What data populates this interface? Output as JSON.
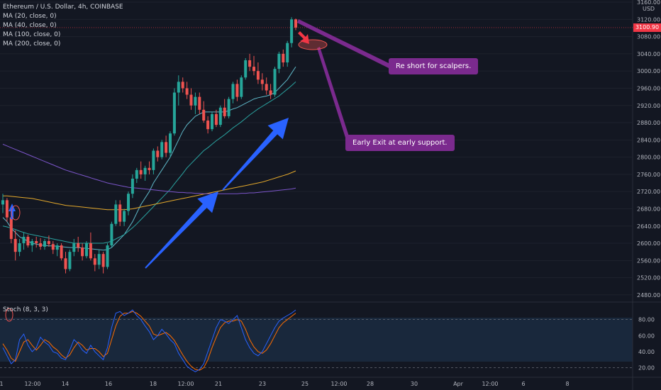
{
  "header": {
    "title": "Ethereum / U.S. Dollar, 4h, COINBASE",
    "indicators": [
      "MA (20, close, 0)",
      "MA (40, close, 0)",
      "MA (100, close, 0)",
      "MA (200, close, 0)"
    ],
    "stoch_label": "Stoch (8, 3, 3)"
  },
  "currency": "USD",
  "last_price": "3100.90",
  "annotations": {
    "callout_1": "Re short for scalpers.",
    "callout_2": "Early Exit at early support."
  },
  "colors": {
    "bull": "#26a69a",
    "bear": "#ef5350",
    "ma20": "#5eb6c6",
    "ma40": "#2aa3a0",
    "ma100": "#e3a82b",
    "ma200": "#7b55c9",
    "arrow": "#2962ff",
    "callout": "#7b2a8e",
    "stoch_k": "#2962ff",
    "stoch_d": "#ff6d00"
  },
  "chart_data": {
    "type": "candlestick",
    "title": "Ethereum / U.S. Dollar, 4h, COINBASE",
    "y_axis": {
      "ticks": [
        3160,
        3120,
        3080,
        3040,
        3000,
        2960,
        2920,
        2880,
        2840,
        2800,
        2760,
        2720,
        2680,
        2640,
        2600,
        2560,
        2520,
        2480
      ],
      "range": [
        2465,
        3165
      ]
    },
    "x_axis": {
      "labels": [
        "1",
        "12:00",
        "14",
        "16",
        "18",
        "12:00",
        "21",
        "23",
        "25",
        "12:00",
        "28",
        "30",
        "Apr",
        "12:00",
        "6",
        "8"
      ]
    },
    "candles": [
      [
        2690,
        2715,
        2670,
        2700
      ],
      [
        2700,
        2705,
        2650,
        2660
      ],
      [
        2660,
        2680,
        2600,
        2610
      ],
      [
        2610,
        2630,
        2560,
        2580
      ],
      [
        2580,
        2610,
        2570,
        2600
      ],
      [
        2600,
        2625,
        2585,
        2615
      ],
      [
        2615,
        2620,
        2590,
        2595
      ],
      [
        2595,
        2610,
        2580,
        2605
      ],
      [
        2605,
        2615,
        2590,
        2600
      ],
      [
        2600,
        2612,
        2585,
        2592
      ],
      [
        2592,
        2610,
        2585,
        2605
      ],
      [
        2605,
        2618,
        2592,
        2598
      ],
      [
        2598,
        2605,
        2575,
        2585
      ],
      [
        2585,
        2600,
        2570,
        2595
      ],
      [
        2595,
        2600,
        2560,
        2565
      ],
      [
        2565,
        2580,
        2530,
        2540
      ],
      [
        2540,
        2585,
        2535,
        2580
      ],
      [
        2580,
        2610,
        2570,
        2600
      ],
      [
        2600,
        2615,
        2580,
        2590
      ],
      [
        2590,
        2600,
        2560,
        2570
      ],
      [
        2570,
        2605,
        2565,
        2600
      ],
      [
        2600,
        2625,
        2560,
        2565
      ],
      [
        2565,
        2575,
        2535,
        2550
      ],
      [
        2550,
        2585,
        2540,
        2575
      ],
      [
        2575,
        2580,
        2530,
        2545
      ],
      [
        2545,
        2600,
        2540,
        2595
      ],
      [
        2595,
        2650,
        2590,
        2645
      ],
      [
        2645,
        2700,
        2640,
        2690
      ],
      [
        2690,
        2700,
        2640,
        2650
      ],
      [
        2650,
        2680,
        2640,
        2675
      ],
      [
        2675,
        2720,
        2665,
        2715
      ],
      [
        2715,
        2760,
        2705,
        2750
      ],
      [
        2750,
        2775,
        2740,
        2770
      ],
      [
        2770,
        2790,
        2750,
        2760
      ],
      [
        2760,
        2780,
        2745,
        2775
      ],
      [
        2775,
        2790,
        2760,
        2770
      ],
      [
        2770,
        2820,
        2760,
        2815
      ],
      [
        2815,
        2825,
        2790,
        2800
      ],
      [
        2800,
        2840,
        2795,
        2835
      ],
      [
        2835,
        2850,
        2800,
        2810
      ],
      [
        2810,
        2860,
        2800,
        2855
      ],
      [
        2855,
        2960,
        2850,
        2950
      ],
      [
        2950,
        2990,
        2920,
        2975
      ],
      [
        2975,
        2985,
        2950,
        2960
      ],
      [
        2960,
        2975,
        2935,
        2945
      ],
      [
        2945,
        2960,
        2910,
        2920
      ],
      [
        2920,
        2950,
        2900,
        2940
      ],
      [
        2940,
        2950,
        2900,
        2910
      ],
      [
        2910,
        2930,
        2880,
        2885
      ],
      [
        2885,
        2895,
        2855,
        2865
      ],
      [
        2865,
        2905,
        2860,
        2900
      ],
      [
        2900,
        2910,
        2870,
        2875
      ],
      [
        2875,
        2920,
        2870,
        2915
      ],
      [
        2915,
        2935,
        2890,
        2895
      ],
      [
        2895,
        2940,
        2890,
        2935
      ],
      [
        2935,
        2975,
        2925,
        2970
      ],
      [
        2970,
        2980,
        2930,
        2940
      ],
      [
        2940,
        2990,
        2935,
        2985
      ],
      [
        2985,
        3030,
        2980,
        3025
      ],
      [
        3025,
        3040,
        3000,
        3010
      ],
      [
        3010,
        3035,
        2990,
        3000
      ],
      [
        3000,
        3020,
        2970,
        2980
      ],
      [
        2980,
        2995,
        2955,
        2970
      ],
      [
        2970,
        2985,
        2945,
        2955
      ],
      [
        2955,
        2970,
        2935,
        2945
      ],
      [
        2945,
        3010,
        2940,
        3005
      ],
      [
        3005,
        3045,
        2995,
        3040
      ],
      [
        3040,
        3050,
        3010,
        3020
      ],
      [
        3020,
        3070,
        3010,
        3065
      ],
      [
        3065,
        3125,
        3055,
        3120
      ],
      [
        3120,
        3122,
        3095,
        3101
      ]
    ],
    "series": [
      {
        "name": "MA (20, close, 0)",
        "values": [
          2660,
          2650,
          2635,
          2625,
          2615,
          2610,
          2605,
          2600,
          2598,
          2596,
          2595,
          2594,
          2594,
          2593,
          2592,
          2591,
          2590,
          2590,
          2590,
          2589,
          2588,
          2587,
          2586,
          2585,
          2584,
          2585,
          2590,
          2600,
          2610,
          2620,
          2635,
          2650,
          2670,
          2690,
          2705,
          2720,
          2740,
          2755,
          2770,
          2785,
          2800,
          2820,
          2840,
          2860,
          2875,
          2885,
          2895,
          2900,
          2905,
          2905,
          2905,
          2905,
          2905,
          2905,
          2908,
          2912,
          2915,
          2920,
          2925,
          2930,
          2935,
          2938,
          2940,
          2942,
          2945,
          2950,
          2960,
          2970,
          2980,
          2995,
          3010
        ]
      },
      {
        "name": "MA (40, close, 0)",
        "values": [
          2640,
          2638,
          2635,
          2632,
          2628,
          2625,
          2622,
          2620,
          2618,
          2616,
          2614,
          2612,
          2610,
          2608,
          2606,
          2604,
          2602,
          2600,
          2600,
          2600,
          2600,
          2600,
          2600,
          2600,
          2600,
          2602,
          2605,
          2610,
          2615,
          2620,
          2628,
          2636,
          2645,
          2655,
          2665,
          2675,
          2685,
          2695,
          2705,
          2715,
          2725,
          2738,
          2750,
          2762,
          2775,
          2785,
          2795,
          2805,
          2815,
          2822,
          2830,
          2838,
          2845,
          2852,
          2860,
          2868,
          2875,
          2882,
          2890,
          2898,
          2905,
          2912,
          2918,
          2924,
          2930,
          2936,
          2942,
          2950,
          2958,
          2966,
          2975
        ]
      },
      {
        "name": "MA (100, close, 0)",
        "values": [
          2710,
          2710,
          2709,
          2708,
          2707,
          2706,
          2705,
          2704,
          2702,
          2700,
          2698,
          2696,
          2694,
          2692,
          2690,
          2688,
          2687,
          2686,
          2685,
          2684,
          2683,
          2682,
          2681,
          2680,
          2679,
          2678,
          2678,
          2678,
          2678,
          2678,
          2679,
          2680,
          2682,
          2684,
          2686,
          2688,
          2690,
          2692,
          2694,
          2696,
          2698,
          2700,
          2702,
          2704,
          2706,
          2708,
          2710,
          2712,
          2714,
          2716,
          2718,
          2720,
          2722,
          2724,
          2726,
          2728,
          2730,
          2732,
          2734,
          2736,
          2738,
          2740,
          2742,
          2745,
          2748,
          2751,
          2754,
          2757,
          2760,
          2764,
          2768
        ]
      },
      {
        "name": "MA (200, close, 0)",
        "values": [
          2830,
          2826,
          2822,
          2818,
          2814,
          2810,
          2806,
          2802,
          2798,
          2794,
          2790,
          2786,
          2782,
          2778,
          2774,
          2770,
          2767,
          2764,
          2761,
          2758,
          2755,
          2752,
          2749,
          2746,
          2743,
          2740,
          2738,
          2736,
          2734,
          2732,
          2730,
          2729,
          2728,
          2727,
          2726,
          2725,
          2724,
          2723,
          2722,
          2721,
          2720,
          2719,
          2718,
          2718,
          2717,
          2717,
          2716,
          2716,
          2715,
          2715,
          2715,
          2715,
          2715,
          2715,
          2715,
          2715,
          2715,
          2716,
          2716,
          2717,
          2717,
          2718,
          2719,
          2720,
          2721,
          2722,
          2723,
          2724,
          2725,
          2726,
          2728
        ]
      }
    ],
    "stoch": {
      "y_ticks": [
        80.0,
        60.0,
        40.0,
        20.0
      ],
      "bands": [
        80,
        20
      ],
      "range": [
        10,
        100
      ],
      "k": [
        45,
        35,
        25,
        30,
        55,
        62,
        48,
        40,
        45,
        58,
        52,
        48,
        40,
        38,
        32,
        30,
        42,
        55,
        50,
        42,
        38,
        48,
        40,
        35,
        30,
        45,
        70,
        88,
        90,
        85,
        88,
        92,
        85,
        80,
        72,
        65,
        55,
        60,
        68,
        62,
        55,
        50,
        38,
        30,
        22,
        18,
        15,
        18,
        25,
        40,
        55,
        70,
        80,
        78,
        75,
        80,
        85,
        70,
        55,
        45,
        38,
        35,
        40,
        50,
        60,
        70,
        78,
        82,
        85,
        88,
        92
      ],
      "d": [
        50,
        42,
        32,
        28,
        40,
        52,
        55,
        48,
        42,
        48,
        55,
        52,
        46,
        42,
        36,
        32,
        36,
        45,
        52,
        48,
        42,
        44,
        44,
        40,
        34,
        38,
        55,
        72,
        84,
        88,
        88,
        90,
        88,
        84,
        78,
        72,
        62,
        60,
        62,
        64,
        60,
        54,
        45,
        36,
        28,
        22,
        18,
        17,
        20,
        30,
        45,
        58,
        70,
        76,
        78,
        78,
        80,
        78,
        68,
        55,
        46,
        40,
        38,
        42,
        50,
        60,
        70,
        76,
        80,
        84,
        88
      ]
    }
  }
}
